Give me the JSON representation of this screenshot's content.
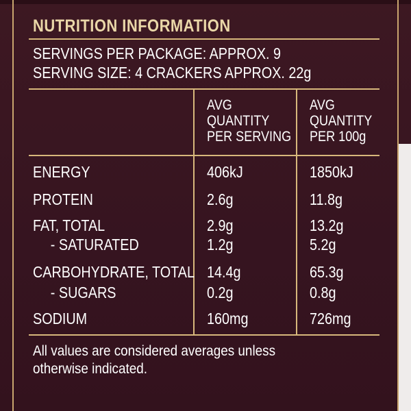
{
  "title": "NUTRITION INFORMATION",
  "servings": {
    "per_package": "SERVINGS PER PACKAGE: APPROX. 9",
    "serving_size": "SERVING SIZE: 4 CRACKERS APPROX. 22g"
  },
  "columns": {
    "per_serving": [
      "AVG",
      "QUANTITY",
      "PER SERVING"
    ],
    "per_100g": [
      "AVG",
      "QUANTITY",
      "PER 100g"
    ]
  },
  "rows": [
    {
      "name": "ENERGY",
      "per_serving": "406kJ",
      "per_100g": "1850kJ"
    },
    {
      "name": "PROTEIN",
      "per_serving": "2.6g",
      "per_100g": "11.8g"
    },
    {
      "name": "FAT, TOTAL",
      "per_serving": "2.9g",
      "per_100g": "13.2g"
    },
    {
      "name": "- SATURATED",
      "per_serving": "1.2g",
      "per_100g": "5.2g"
    },
    {
      "name": "CARBOHYDRATE, TOTAL",
      "per_serving": "14.4g",
      "per_100g": "65.3g"
    },
    {
      "name": "- SUGARS",
      "per_serving": "0.2g",
      "per_100g": "0.8g"
    },
    {
      "name": "SODIUM",
      "per_serving": "160mg",
      "per_100g": "726mg"
    }
  ],
  "footnote": [
    "All values are considered averages unless",
    "otherwise indicated."
  ],
  "colors": {
    "background": "#3a1620",
    "accent_gold": "#d8b87c",
    "title_gold": "#ead7a8",
    "text": "#ffffff"
  }
}
